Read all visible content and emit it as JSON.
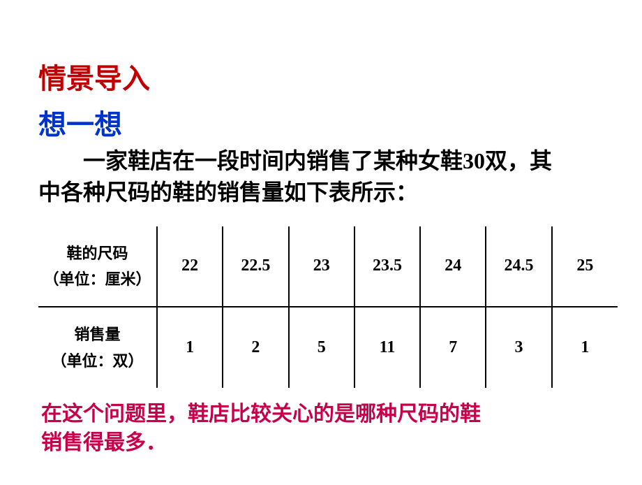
{
  "colors": {
    "title_color": "#c00000",
    "subtitle_color": "#0033cc",
    "body_color": "#000000",
    "footer_color": "#c6004b",
    "background": "#ffffff",
    "border_color": "#000000"
  },
  "title": "情景导入",
  "subtitle": "想一想",
  "body_line1": "一家鞋店在一段时间内销售了某种女鞋30双，其",
  "body_line2": "中各种尺码的鞋的销售量如下表所示：",
  "table": {
    "row1_header_l1": "鞋的尺码",
    "row1_header_l2": "（单位：厘米）",
    "row2_header_l1": "销售量",
    "row2_header_l2": "（单位：双）",
    "sizes": [
      "22",
      "22.5",
      "23",
      "23.5",
      "24",
      "24.5",
      "25"
    ],
    "sales": [
      "1",
      "2",
      "5",
      "11",
      "7",
      "3",
      "1"
    ]
  },
  "footer_l1": "在这个问题里，鞋店比较关心的是哪种尺码的鞋",
  "footer_l2": "销售得最多．"
}
